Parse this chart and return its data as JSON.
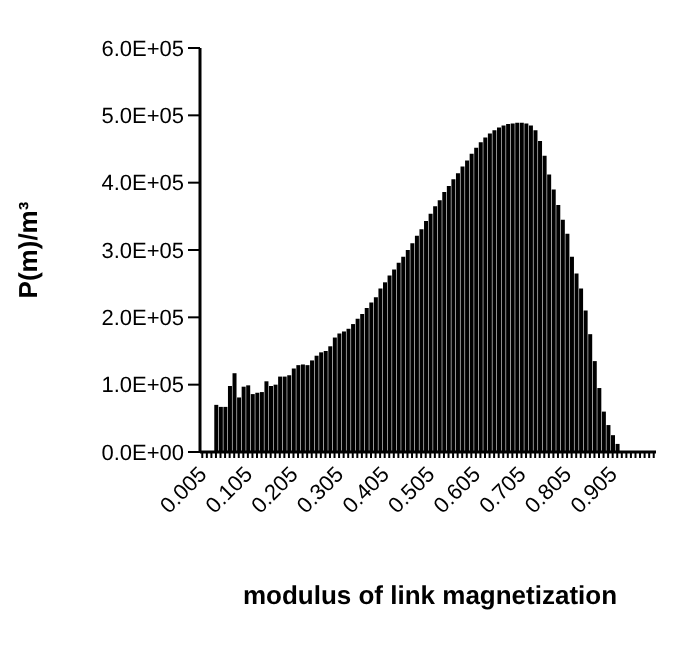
{
  "chart_data": {
    "type": "bar",
    "xlabel": "modulus of link magnetization",
    "ylabel": "P(m)/m³",
    "categories": [
      "0.005",
      null,
      null,
      null,
      null,
      null,
      null,
      null,
      null,
      null,
      "0.105",
      null,
      null,
      null,
      null,
      null,
      null,
      null,
      null,
      null,
      "0.205",
      null,
      null,
      null,
      null,
      null,
      null,
      null,
      null,
      null,
      "0.305",
      null,
      null,
      null,
      null,
      null,
      null,
      null,
      null,
      null,
      "0.405",
      null,
      null,
      null,
      null,
      null,
      null,
      null,
      null,
      null,
      "0.505",
      null,
      null,
      null,
      null,
      null,
      null,
      null,
      null,
      null,
      "0.605",
      null,
      null,
      null,
      null,
      null,
      null,
      null,
      null,
      null,
      "0.705",
      null,
      null,
      null,
      null,
      null,
      null,
      null,
      null,
      null,
      "0.805",
      null,
      null,
      null,
      null,
      null,
      null,
      null,
      null,
      null,
      "0.905",
      null,
      null,
      null,
      null,
      null,
      null,
      null,
      null,
      null
    ],
    "values": [
      0,
      0,
      0,
      70000,
      67000,
      67000,
      98000,
      117000,
      81000,
      97000,
      99000,
      86000,
      88000,
      89000,
      105000,
      98000,
      100000,
      112000,
      112000,
      114000,
      124000,
      129000,
      130000,
      129000,
      136000,
      143000,
      148000,
      150000,
      157000,
      170000,
      176000,
      179000,
      183000,
      190000,
      198000,
      205000,
      214000,
      222000,
      230000,
      243000,
      252000,
      262000,
      271000,
      281000,
      290000,
      300000,
      310000,
      321000,
      331000,
      343000,
      354000,
      365000,
      374000,
      386000,
      395000,
      405000,
      414000,
      424000,
      433000,
      443000,
      452000,
      460000,
      467000,
      473000,
      478000,
      482000,
      485000,
      487000,
      488000,
      489000,
      489000,
      488000,
      485000,
      478000,
      462000,
      440000,
      412000,
      390000,
      367000,
      345000,
      324000,
      290000,
      265000,
      243000,
      210000,
      175000,
      135000,
      95000,
      60000,
      40000,
      25000,
      12000,
      null,
      null,
      0,
      0,
      0,
      0,
      0,
      0
    ],
    "color": "#000000",
    "ylim": [
      0,
      600000
    ],
    "yticks": [
      {
        "value": 0,
        "label": "0.0E+00"
      },
      {
        "value": 100000,
        "label": "1.0E+05"
      },
      {
        "value": 200000,
        "label": "2.0E+05"
      },
      {
        "value": 300000,
        "label": "3.0E+05"
      },
      {
        "value": 400000,
        "label": "4.0E+05"
      },
      {
        "value": 500000,
        "label": "5.0E+05"
      },
      {
        "value": 600000,
        "label": "6.0E+05"
      }
    ],
    "grid": false,
    "legend": false
  }
}
